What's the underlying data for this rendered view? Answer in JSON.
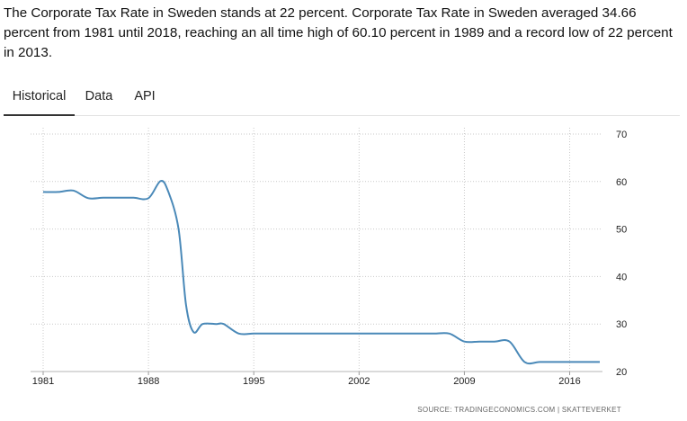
{
  "intro_text": "The Corporate Tax Rate in Sweden stands at 22 percent. Corporate Tax Rate in Sweden averaged 34.66 percent from 1981 until 2018, reaching an all time high of 60.10 percent in 1989 and a record low of 22 percent in 2013.",
  "tabs": [
    {
      "label": "Historical",
      "active": true
    },
    {
      "label": "Data",
      "active": false
    },
    {
      "label": "API",
      "active": false
    }
  ],
  "source_text": "SOURCE: TRADINGECONOMICS.COM  |  SKATTEVERKET",
  "colors": {
    "line": "#4a89b8",
    "grid": "#c9c9c9"
  },
  "chart_data": {
    "type": "line",
    "x_ticks": [
      1981,
      1988,
      1995,
      2002,
      2009,
      2016
    ],
    "y_ticks": [
      20,
      30,
      40,
      50,
      60,
      70
    ],
    "xlim": [
      1981,
      2018
    ],
    "ylim": [
      20,
      70
    ],
    "grid": true,
    "y_axis_side": "right",
    "series": [
      {
        "values": [
          [
            1981,
            57.8
          ],
          [
            1982,
            57.8
          ],
          [
            1983,
            58.1
          ],
          [
            1984,
            56.5
          ],
          [
            1985,
            56.6
          ],
          [
            1986,
            56.6
          ],
          [
            1987,
            56.6
          ],
          [
            1988,
            56.5
          ],
          [
            1988.8,
            60.1
          ],
          [
            1989.3,
            58
          ],
          [
            1990,
            50
          ],
          [
            1990.5,
            34
          ],
          [
            1991,
            28.3
          ],
          [
            1991.6,
            30
          ],
          [
            1992.5,
            30
          ],
          [
            1993,
            30
          ],
          [
            1994,
            28
          ],
          [
            1995,
            28
          ],
          [
            1996,
            28
          ],
          [
            1997,
            28
          ],
          [
            1998,
            28
          ],
          [
            1999,
            28
          ],
          [
            2000,
            28
          ],
          [
            2001,
            28
          ],
          [
            2002,
            28
          ],
          [
            2003,
            28
          ],
          [
            2004,
            28
          ],
          [
            2005,
            28
          ],
          [
            2006,
            28
          ],
          [
            2007,
            28
          ],
          [
            2008,
            28
          ],
          [
            2009,
            26.3
          ],
          [
            2010,
            26.3
          ],
          [
            2011,
            26.3
          ],
          [
            2012,
            26.3
          ],
          [
            2013,
            22
          ],
          [
            2014,
            22
          ],
          [
            2015,
            22
          ],
          [
            2016,
            22
          ],
          [
            2017,
            22
          ],
          [
            2018,
            22
          ]
        ]
      }
    ]
  }
}
